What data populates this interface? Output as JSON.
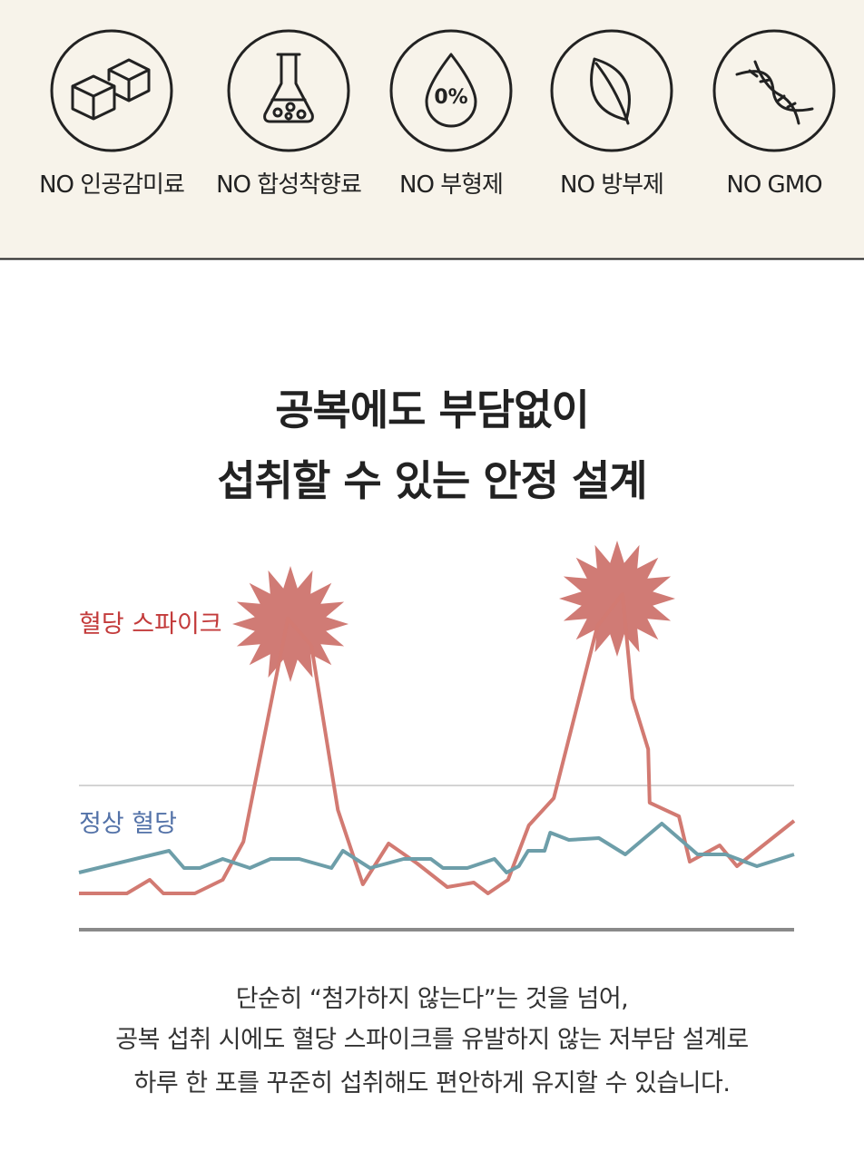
{
  "badges": [
    {
      "label": "NO 인공감미료"
    },
    {
      "label": "NO 합성착향료"
    },
    {
      "label": "NO 부형제"
    },
    {
      "label": "NO 방부제"
    },
    {
      "label": "NO GMO"
    }
  ],
  "drop_icon_text": "0%",
  "heading": {
    "lines": [
      "공복에도 부담없이",
      "섭취할 수 있는 안정 설계"
    ]
  },
  "chart_data": {
    "type": "line",
    "xlim": [
      0,
      100
    ],
    "ylim": [
      0,
      100
    ],
    "series": [
      {
        "name": "혈당 스파이크",
        "color": "#d27a72",
        "label_color": "#c33b3b",
        "x": [
          0,
          6.7,
          9.9,
          11.8,
          16.2,
          20.1,
          23.0,
          29.2,
          32.5,
          36.2,
          39.7,
          43.3,
          47.3,
          51.5,
          55.2,
          57.2,
          60.0,
          62.9,
          66.4,
          72.5,
          76.0,
          77.4,
          79.6,
          79.8,
          83.9,
          85.4,
          89.6,
          92.0,
          100
        ],
        "values": [
          10,
          10,
          13.75,
          10,
          10,
          13.75,
          24.25,
          85.75,
          78.25,
          33,
          12.5,
          23.75,
          18.25,
          11.75,
          13,
          10,
          13.75,
          28.75,
          36.25,
          83.75,
          92.5,
          63.75,
          49.75,
          35,
          31.25,
          18.75,
          23.25,
          17.5,
          30
        ]
      },
      {
        "name": "정상 혈당",
        "color": "#6d9ea9",
        "label_color": "#5372a8",
        "x": [
          0,
          12.6,
          14.7,
          16.9,
          20.1,
          23.9,
          26.8,
          30.8,
          35.3,
          36.9,
          40.7,
          45.4,
          49.2,
          50.9,
          54.3,
          58.1,
          59.8,
          61.5,
          62.8,
          65.1,
          65.9,
          68.5,
          72.7,
          76.4,
          81.5,
          86.5,
          90.4,
          94.8,
          100
        ],
        "values": [
          15.75,
          21.75,
          17,
          17,
          19.5,
          17,
          19.5,
          19.5,
          17,
          21.75,
          17,
          19.5,
          19.5,
          17,
          17,
          19.5,
          15.75,
          17.5,
          21.75,
          21.75,
          26.75,
          24.75,
          25.25,
          20.75,
          29.25,
          20.75,
          20.75,
          17.5,
          20.75
        ]
      }
    ]
  },
  "body": {
    "lines": [
      "단순히 “첨가하지 않는다”는 것을 넘어,",
      "공복 섭취 시에도 혈당 스파이크를 유발하지 않는 저부담 설계로",
      "하루 한 포를 꾸준히 섭취해도 편안하게 유지할 수 있습니다."
    ]
  }
}
